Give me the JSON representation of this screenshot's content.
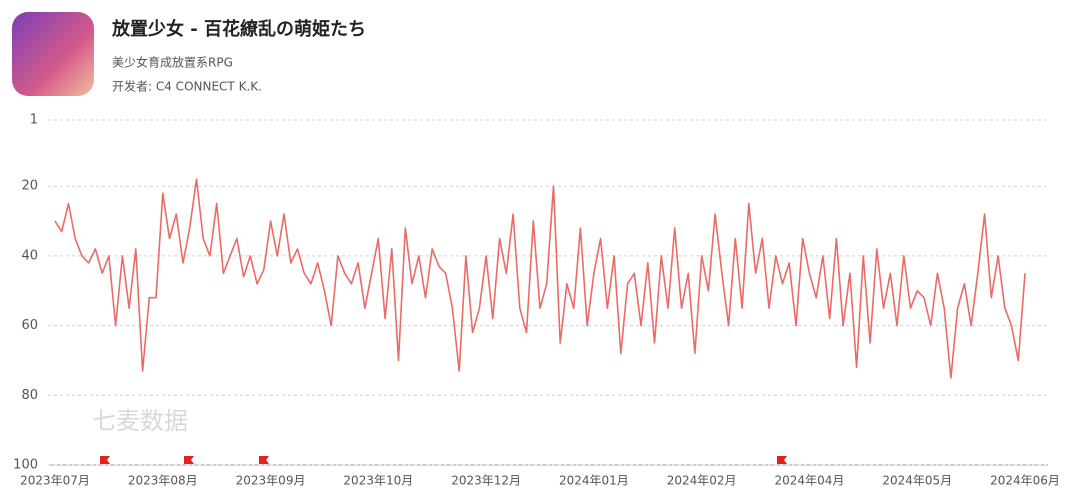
{
  "header": {
    "title": "放置少女 - 百花繚乱の萌姫たち",
    "subtitle": "美少女育成放置系RPG",
    "developer": "开发者: C4 CONNECT K.K."
  },
  "chart_data": {
    "type": "line",
    "watermark": "七麦数据",
    "categories": [
      "2023年07月",
      null,
      null,
      null,
      null,
      null,
      null,
      null,
      null,
      null,
      null,
      null,
      null,
      null,
      null,
      null,
      "2023年08月",
      null,
      null,
      null,
      null,
      null,
      null,
      null,
      null,
      null,
      null,
      null,
      null,
      null,
      null,
      null,
      "2023年09月",
      null,
      null,
      null,
      null,
      null,
      null,
      null,
      null,
      null,
      null,
      null,
      null,
      null,
      null,
      null,
      "2023年10月",
      null,
      null,
      null,
      null,
      null,
      null,
      null,
      null,
      null,
      null,
      null,
      null,
      null,
      null,
      null,
      "2023年12月",
      null,
      null,
      null,
      null,
      null,
      null,
      null,
      null,
      null,
      null,
      null,
      null,
      null,
      null,
      null,
      "2024年01月",
      null,
      null,
      null,
      null,
      null,
      null,
      null,
      null,
      null,
      null,
      null,
      null,
      null,
      null,
      null,
      "2024年02月",
      null,
      null,
      null,
      null,
      null,
      null,
      null,
      null,
      null,
      null,
      null,
      null,
      null,
      null,
      null,
      "2024年04月",
      null,
      null,
      null,
      null,
      null,
      null,
      null,
      null,
      null,
      null,
      null,
      null,
      null,
      null,
      null,
      "2024年05月",
      null,
      null,
      null,
      null,
      null,
      null,
      null,
      null,
      null,
      null,
      null,
      null,
      null,
      null,
      null,
      "2024年06月"
    ],
    "series": [
      {
        "color": "#ea6b66",
        "values": [
          30,
          33,
          25,
          35,
          40,
          42,
          38,
          45,
          40,
          60,
          40,
          55,
          38,
          73,
          52,
          52,
          22,
          35,
          28,
          42,
          32,
          18,
          35,
          40,
          25,
          45,
          40,
          35,
          46,
          40,
          48,
          44,
          30,
          40,
          28,
          42,
          38,
          45,
          48,
          42,
          50,
          60,
          40,
          45,
          48,
          42,
          55,
          45,
          35,
          58,
          38,
          70,
          32,
          48,
          40,
          52,
          38,
          43,
          45,
          55,
          73,
          40,
          62,
          55,
          40,
          58,
          35,
          45,
          28,
          55,
          62,
          30,
          55,
          48,
          20,
          65,
          48,
          55,
          32,
          60,
          45,
          35,
          55,
          40,
          68,
          48,
          45,
          60,
          42,
          65,
          40,
          55,
          32,
          55,
          45,
          68,
          40,
          50,
          28,
          45,
          60,
          35,
          55,
          25,
          45,
          35,
          55,
          40,
          48,
          42,
          60,
          35,
          45,
          52,
          40,
          58,
          35,
          60,
          45,
          72,
          40,
          65,
          38,
          55,
          45,
          60,
          40,
          55,
          50,
          52,
          60,
          45,
          55,
          75,
          55,
          48,
          60,
          45,
          28,
          52,
          40,
          55,
          60,
          70,
          45
        ]
      }
    ],
    "ylim": [
      100,
      1
    ],
    "yticks": [
      1,
      20,
      40,
      60,
      80,
      100
    ],
    "grid": true
  }
}
